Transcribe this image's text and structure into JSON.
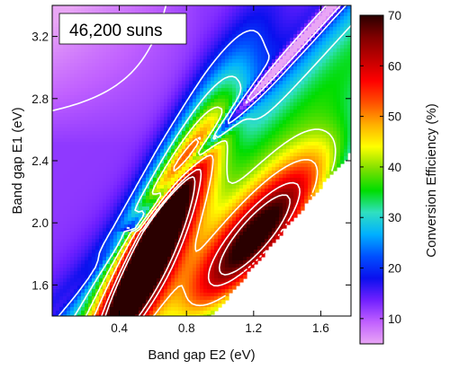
{
  "chart_data": {
    "type": "heatmap",
    "title": "",
    "annotation": "46,200 suns",
    "xlabel": "Band gap E2 (eV)",
    "ylabel": "Band gap E1 (eV)",
    "colorbar_label": "Conversion Efficiency (%)",
    "xlim": [
      0.0,
      1.78
    ],
    "ylim": [
      1.4,
      3.4
    ],
    "clim": [
      5,
      70
    ],
    "x_ticks": [
      0.4,
      0.8,
      1.2,
      1.6
    ],
    "x_tick_labels": [
      "0.4",
      "0.8",
      "1.2",
      "1.6"
    ],
    "y_ticks": [
      1.6,
      2.0,
      2.4,
      2.8,
      3.2
    ],
    "y_tick_labels": [
      "1.6",
      "2.0",
      "2.4",
      "2.8",
      "3.2"
    ],
    "colorbar_ticks": [
      10,
      20,
      30,
      40,
      50,
      60,
      70
    ],
    "colorbar_tick_labels": [
      "10",
      "20",
      "30",
      "40",
      "50",
      "60",
      "70"
    ],
    "contour_levels": [
      10,
      20,
      30,
      40,
      50,
      60,
      65
    ],
    "contour_color": "#ffffff",
    "no_data_region": "lower-right",
    "peaks": [
      {
        "x": 0.62,
        "y": 1.9,
        "value": 67
      },
      {
        "x": 1.22,
        "y": 1.9,
        "value": 67
      }
    ],
    "colormap": [
      "#e9a6f5",
      "#c060ff",
      "#7020ff",
      "#0a10ee",
      "#0050ff",
      "#00b0ff",
      "#30e0c0",
      "#00dd00",
      "#80e000",
      "#ffff00",
      "#ffb000",
      "#ff5000",
      "#ff0000",
      "#c00000",
      "#800000",
      "#2a0000"
    ]
  }
}
